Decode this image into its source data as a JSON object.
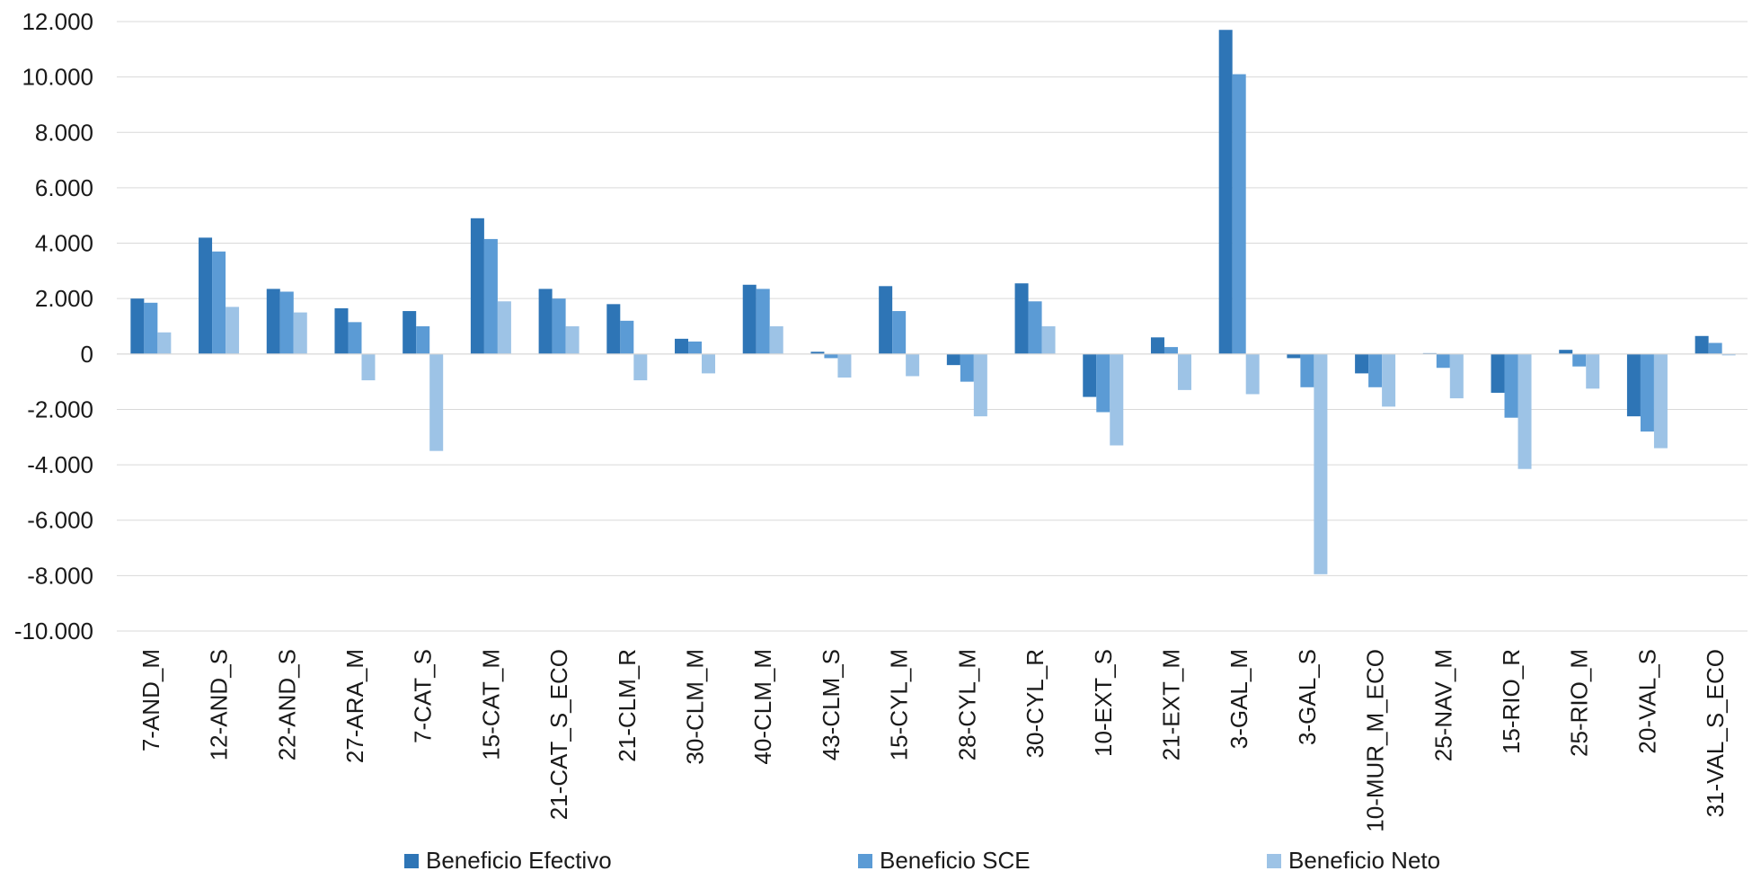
{
  "chart_data": {
    "type": "bar",
    "title": "",
    "xlabel": "",
    "ylabel": "",
    "ylim": [
      -10000,
      12000
    ],
    "ytick_values": [
      12000,
      10000,
      8000,
      6000,
      4000,
      2000,
      0,
      -2000,
      -4000,
      -6000,
      -8000,
      -10000
    ],
    "ytick_labels": [
      "12.000",
      "10.000",
      "8.000",
      "6.000",
      "4.000",
      "2.000",
      "0",
      "-2.000",
      "-4.000",
      "-6.000",
      "-8.000",
      "-10.000"
    ],
    "grid": true,
    "legend_position": "bottom",
    "categories": [
      "7-AND_M",
      "12-AND_S",
      "22-AND_S",
      "27-ARA_M",
      "7-CAT_S",
      "15-CAT_M",
      "21-CAT_S_ECO",
      "21-CLM_R",
      "30-CLM_M",
      "40-CLM_M",
      "43-CLM_S",
      "15-CYL_M",
      "28-CYL_M",
      "30-CYL_R",
      "10-EXT_S",
      "21-EXT_M",
      "3-GAL_M",
      "3-GAL_S",
      "10-MUR_M_ECO",
      "25-NAV_M",
      "15-RIO_R",
      "25-RIO_M",
      "20-VAL_S",
      "31-VAL_S_ECO"
    ],
    "series": [
      {
        "name": "Beneficio Efectivo",
        "color": "#2E75B6",
        "values": [
          2000,
          4200,
          2350,
          1650,
          1550,
          4900,
          2350,
          1800,
          550,
          2500,
          80,
          2450,
          -400,
          2550,
          -1550,
          600,
          11700,
          -150,
          -700,
          30,
          -1400,
          150,
          -2250,
          650
        ]
      },
      {
        "name": "Beneficio SCE",
        "color": "#5B9BD5",
        "values": [
          1850,
          3700,
          2250,
          1150,
          1000,
          4150,
          2000,
          1200,
          450,
          2350,
          -150,
          1550,
          -1000,
          1900,
          -2100,
          250,
          10100,
          -1200,
          -1200,
          -500,
          -2300,
          -450,
          -2800,
          400
        ]
      },
      {
        "name": "Beneficio Neto",
        "color": "#9DC3E6",
        "values": [
          780,
          1700,
          1500,
          -950,
          -3500,
          1900,
          1000,
          -950,
          -700,
          1000,
          -850,
          -800,
          -2250,
          1000,
          -3300,
          -1300,
          -1450,
          -7950,
          -1900,
          -1600,
          -4150,
          -1250,
          -3400,
          -50
        ]
      }
    ]
  }
}
